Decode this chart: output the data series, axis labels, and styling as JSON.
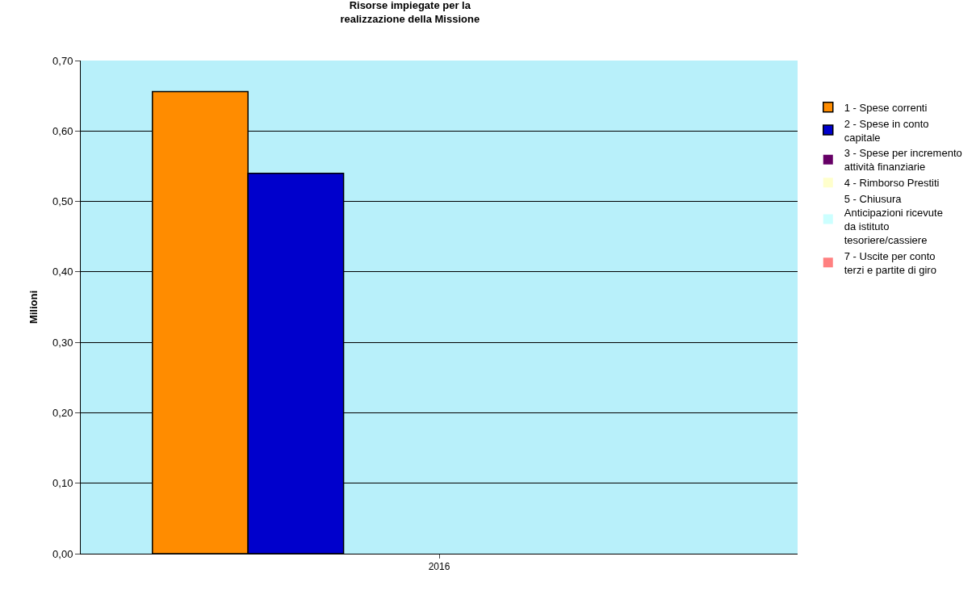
{
  "chart_data": {
    "type": "bar",
    "title": "Risorse impiegate per la\nrealizzazione della Missione",
    "ylabel": "Milioni",
    "categories": [
      "2016"
    ],
    "series": [
      {
        "name": "1 - Spese correnti",
        "color": "#ff8c00",
        "values": [
          0.656
        ]
      },
      {
        "name": "2 - Spese in conto capitale",
        "color": "#0000cc",
        "values": [
          0.54
        ]
      },
      {
        "name": "3 - Spese per incremento attività finanziarie",
        "color": "#660066",
        "values": [
          0
        ]
      },
      {
        "name": "4 - Rimborso Prestiti",
        "color": "#ffffcc",
        "values": [
          0
        ]
      },
      {
        "name": "5 - Chiusura Anticipazioni ricevute da istituto tesoriere/cassiere",
        "color": "#ccffff",
        "values": [
          0
        ]
      },
      {
        "name": "7 - Uscite per conto terzi e partite di giro",
        "color": "#ff8080",
        "values": [
          0
        ]
      }
    ],
    "ylim": [
      0,
      0.7
    ],
    "yticks": [
      {
        "value": 0,
        "label": "0,00"
      },
      {
        "value": 0.1,
        "label": "0,10"
      },
      {
        "value": 0.2,
        "label": "0,20"
      },
      {
        "value": 0.3,
        "label": "0,30"
      },
      {
        "value": 0.4,
        "label": "0,40"
      },
      {
        "value": 0.5,
        "label": "0,50"
      },
      {
        "value": 0.6,
        "label": "0,60"
      },
      {
        "value": 0.7,
        "label": "0,70"
      }
    ],
    "grid": "y",
    "legend": "right"
  }
}
